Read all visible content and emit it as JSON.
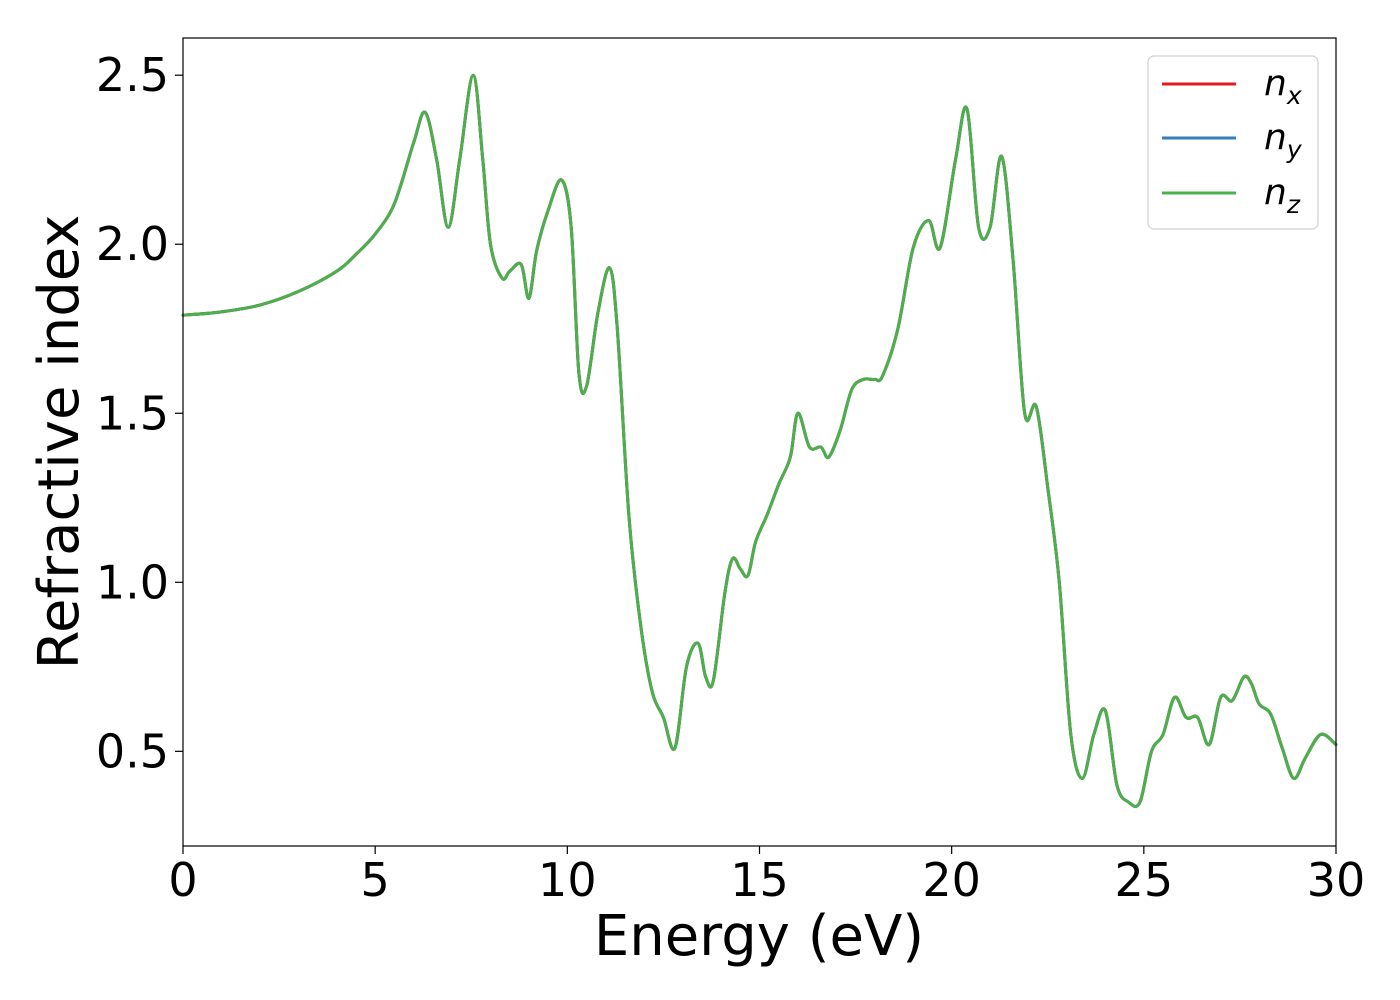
{
  "chart_data": {
    "type": "line",
    "title": "",
    "xlabel": "Energy (eV)",
    "ylabel": "Refractive index",
    "xlim": [
      0,
      30
    ],
    "ylim": [
      0.22,
      2.61
    ],
    "xticks": [
      0,
      5,
      10,
      15,
      20,
      25,
      30
    ],
    "xtick_labels": [
      "0",
      "5",
      "10",
      "15",
      "20",
      "25",
      "30"
    ],
    "yticks": [
      0.5,
      1.0,
      1.5,
      2.0,
      2.5
    ],
    "ytick_labels": [
      "0.5",
      "1.0",
      "1.5",
      "2.0",
      "2.5"
    ],
    "grid": false,
    "legend_position": "top-right",
    "series": [
      {
        "name": "n_x",
        "label_base": "n",
        "label_sub": "x",
        "color": "#e41a1c",
        "x": [
          0,
          1,
          2,
          3,
          4,
          4.5,
          5,
          5.5,
          6,
          6.3,
          6.6,
          6.9,
          7.2,
          7.55,
          7.8,
          8.0,
          8.3,
          8.5,
          8.8,
          9.0,
          9.2,
          9.5,
          9.85,
          10.1,
          10.3,
          10.5,
          10.8,
          11.1,
          11.3,
          11.6,
          11.9,
          12.2,
          12.5,
          12.8,
          13.1,
          13.4,
          13.6,
          13.8,
          14.1,
          14.3,
          14.5,
          14.7,
          14.9,
          15.2,
          15.5,
          15.8,
          16.0,
          16.3,
          16.6,
          16.8,
          17.1,
          17.4,
          17.7,
          18.0,
          18.2,
          18.6,
          19.0,
          19.4,
          19.7,
          20.1,
          20.4,
          20.7,
          21.0,
          21.3,
          21.6,
          21.9,
          22.2,
          22.5,
          22.8,
          23.1,
          23.4,
          23.7,
          24.0,
          24.3,
          24.6,
          24.9,
          25.2,
          25.5,
          25.8,
          26.1,
          26.4,
          26.7,
          27.0,
          27.3,
          27.6,
          27.8,
          28.0,
          28.3,
          28.6,
          28.9,
          29.2,
          29.6,
          30.0
        ],
        "values": [
          1.79,
          1.8,
          1.82,
          1.86,
          1.92,
          1.97,
          2.03,
          2.12,
          2.3,
          2.39,
          2.25,
          2.05,
          2.25,
          2.5,
          2.25,
          2.0,
          1.9,
          1.92,
          1.94,
          1.84,
          1.98,
          2.1,
          2.19,
          2.05,
          1.62,
          1.58,
          1.8,
          1.93,
          1.75,
          1.2,
          0.88,
          0.68,
          0.6,
          0.51,
          0.75,
          0.82,
          0.72,
          0.71,
          0.97,
          1.07,
          1.04,
          1.02,
          1.12,
          1.2,
          1.29,
          1.37,
          1.5,
          1.4,
          1.4,
          1.37,
          1.45,
          1.57,
          1.6,
          1.6,
          1.61,
          1.75,
          1.99,
          2.07,
          1.99,
          2.25,
          2.4,
          2.05,
          2.05,
          2.26,
          1.95,
          1.5,
          1.52,
          1.28,
          1.0,
          0.55,
          0.42,
          0.55,
          0.62,
          0.4,
          0.35,
          0.35,
          0.5,
          0.55,
          0.66,
          0.6,
          0.6,
          0.52,
          0.66,
          0.65,
          0.72,
          0.7,
          0.64,
          0.61,
          0.51,
          0.42,
          0.48,
          0.55,
          0.52
        ]
      },
      {
        "name": "n_y",
        "label_base": "n",
        "label_sub": "y",
        "color": "#377eb8",
        "x": [
          0,
          1,
          2,
          3,
          4,
          4.5,
          5,
          5.5,
          6,
          6.3,
          6.6,
          6.9,
          7.2,
          7.55,
          7.8,
          8.0,
          8.3,
          8.5,
          8.8,
          9.0,
          9.2,
          9.5,
          9.85,
          10.1,
          10.3,
          10.5,
          10.8,
          11.1,
          11.3,
          11.6,
          11.9,
          12.2,
          12.5,
          12.8,
          13.1,
          13.4,
          13.6,
          13.8,
          14.1,
          14.3,
          14.5,
          14.7,
          14.9,
          15.2,
          15.5,
          15.8,
          16.0,
          16.3,
          16.6,
          16.8,
          17.1,
          17.4,
          17.7,
          18.0,
          18.2,
          18.6,
          19.0,
          19.4,
          19.7,
          20.1,
          20.4,
          20.7,
          21.0,
          21.3,
          21.6,
          21.9,
          22.2,
          22.5,
          22.8,
          23.1,
          23.4,
          23.7,
          24.0,
          24.3,
          24.6,
          24.9,
          25.2,
          25.5,
          25.8,
          26.1,
          26.4,
          26.7,
          27.0,
          27.3,
          27.6,
          27.8,
          28.0,
          28.3,
          28.6,
          28.9,
          29.2,
          29.6,
          30.0
        ],
        "values": [
          1.79,
          1.8,
          1.82,
          1.86,
          1.92,
          1.97,
          2.03,
          2.12,
          2.3,
          2.39,
          2.25,
          2.05,
          2.25,
          2.5,
          2.25,
          2.0,
          1.9,
          1.92,
          1.94,
          1.84,
          1.98,
          2.1,
          2.19,
          2.05,
          1.62,
          1.58,
          1.8,
          1.93,
          1.75,
          1.2,
          0.88,
          0.68,
          0.6,
          0.51,
          0.75,
          0.82,
          0.72,
          0.71,
          0.97,
          1.07,
          1.04,
          1.02,
          1.12,
          1.2,
          1.29,
          1.37,
          1.5,
          1.4,
          1.4,
          1.37,
          1.45,
          1.57,
          1.6,
          1.6,
          1.61,
          1.75,
          1.99,
          2.07,
          1.99,
          2.25,
          2.4,
          2.05,
          2.05,
          2.26,
          1.95,
          1.5,
          1.52,
          1.28,
          1.0,
          0.55,
          0.42,
          0.55,
          0.62,
          0.4,
          0.35,
          0.35,
          0.5,
          0.55,
          0.66,
          0.6,
          0.6,
          0.52,
          0.66,
          0.65,
          0.72,
          0.7,
          0.64,
          0.61,
          0.51,
          0.42,
          0.48,
          0.55,
          0.52
        ]
      },
      {
        "name": "n_z",
        "label_base": "n",
        "label_sub": "z",
        "color": "#4daf4a",
        "x": [
          0,
          1,
          2,
          3,
          4,
          4.5,
          5,
          5.5,
          6,
          6.3,
          6.6,
          6.9,
          7.2,
          7.55,
          7.8,
          8.0,
          8.3,
          8.5,
          8.8,
          9.0,
          9.2,
          9.5,
          9.85,
          10.1,
          10.3,
          10.5,
          10.8,
          11.1,
          11.3,
          11.6,
          11.9,
          12.2,
          12.5,
          12.8,
          13.1,
          13.4,
          13.6,
          13.8,
          14.1,
          14.3,
          14.5,
          14.7,
          14.9,
          15.2,
          15.5,
          15.8,
          16.0,
          16.3,
          16.6,
          16.8,
          17.1,
          17.4,
          17.7,
          18.0,
          18.2,
          18.6,
          19.0,
          19.4,
          19.7,
          20.1,
          20.4,
          20.7,
          21.0,
          21.3,
          21.6,
          21.9,
          22.2,
          22.5,
          22.8,
          23.1,
          23.4,
          23.7,
          24.0,
          24.3,
          24.6,
          24.9,
          25.2,
          25.5,
          25.8,
          26.1,
          26.4,
          26.7,
          27.0,
          27.3,
          27.6,
          27.8,
          28.0,
          28.3,
          28.6,
          28.9,
          29.2,
          29.6,
          30.0
        ],
        "values": [
          1.79,
          1.8,
          1.82,
          1.86,
          1.92,
          1.97,
          2.03,
          2.12,
          2.3,
          2.39,
          2.25,
          2.05,
          2.25,
          2.5,
          2.25,
          2.0,
          1.9,
          1.92,
          1.94,
          1.84,
          1.98,
          2.1,
          2.19,
          2.05,
          1.62,
          1.58,
          1.8,
          1.93,
          1.75,
          1.2,
          0.88,
          0.68,
          0.6,
          0.51,
          0.75,
          0.82,
          0.72,
          0.71,
          0.97,
          1.07,
          1.04,
          1.02,
          1.12,
          1.2,
          1.29,
          1.37,
          1.5,
          1.4,
          1.4,
          1.37,
          1.45,
          1.57,
          1.6,
          1.6,
          1.61,
          1.75,
          1.99,
          2.07,
          1.99,
          2.25,
          2.4,
          2.05,
          2.05,
          2.26,
          1.95,
          1.5,
          1.52,
          1.28,
          1.0,
          0.55,
          0.42,
          0.55,
          0.62,
          0.4,
          0.35,
          0.35,
          0.5,
          0.55,
          0.66,
          0.6,
          0.6,
          0.52,
          0.66,
          0.65,
          0.72,
          0.7,
          0.64,
          0.61,
          0.51,
          0.42,
          0.48,
          0.55,
          0.52
        ]
      }
    ]
  }
}
